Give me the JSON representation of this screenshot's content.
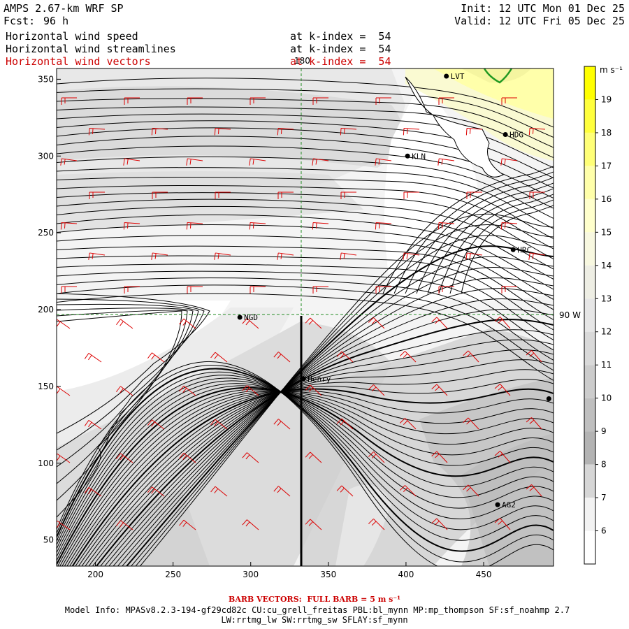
{
  "header": {
    "model": "AMPS 2.67-km WRF SP",
    "fcst_label": "Fcst:",
    "fcst_value": "96 h",
    "init": "Init: 12 UTC Mon 01 Dec 25",
    "valid": "Valid: 12 UTC Fri 05 Dec 25",
    "fields": [
      {
        "name": "Horizontal wind speed",
        "level": "at k-index =  54"
      },
      {
        "name": "Horizontal wind streamlines",
        "level": "at k-index =  54"
      },
      {
        "name": "Horizontal wind vectors",
        "level": "at k-index =  54"
      }
    ]
  },
  "map": {
    "x_ticks": [
      "200",
      "250",
      "300",
      "350",
      "400",
      "450"
    ],
    "y_ticks": [
      "50",
      "100",
      "150",
      "200",
      "250",
      "300",
      "350"
    ],
    "x_range": [
      175,
      495
    ],
    "y_range": [
      33,
      357
    ],
    "meridian_label": "180",
    "parallel_label": "90 W",
    "stations": [
      {
        "label": "LVT",
        "x": 426,
        "y": 352
      },
      {
        "label": "HDG",
        "x": 464,
        "y": 314
      },
      {
        "label": "KLN",
        "x": 401,
        "y": 300
      },
      {
        "label": "HRC",
        "x": 469,
        "y": 239
      },
      {
        "label": "NGD",
        "x": 293,
        "y": 195
      },
      {
        "label": "Henry",
        "x": 334,
        "y": 155
      },
      {
        "label": "",
        "x": 492,
        "y": 142
      },
      {
        "label": "AG2",
        "x": 459,
        "y": 73
      }
    ],
    "colors": {
      "streamline": "#000000",
      "barb": "#dd0000",
      "grid": "#228b22",
      "land_outline": "#229922"
    }
  },
  "colorbar": {
    "unit": "m s⁻¹",
    "labels": [
      "19",
      "18",
      "17",
      "16",
      "15",
      "14",
      "13",
      "12",
      "11",
      "10",
      "9",
      "8",
      "7",
      "6"
    ],
    "colors": [
      "#ffff00",
      "#ffff3c",
      "#ffff77",
      "#ffffaa",
      "#ffffcc",
      "#f8f8e0",
      "#eeeee4",
      "#e6e6e6",
      "#d9d9d9",
      "#cccccc",
      "#bfbfbf",
      "#b3b3b3",
      "#d6d6d6",
      "#f2f2f2",
      "#ffffff"
    ]
  },
  "footer": {
    "barb": "BARB VECTORS:  FULL BARB = 5 m s⁻¹",
    "line1": "Model Info: MPASv8.2.3-194-gf29cd82c CU:cu_grell_freitas PBL:bl_mynn MP:mp_thompson SF:sf_noahmp 2.7",
    "line2": "LW:rrtmg_lw SW:rrtmg_sw SFLAY:sf_mynn"
  }
}
